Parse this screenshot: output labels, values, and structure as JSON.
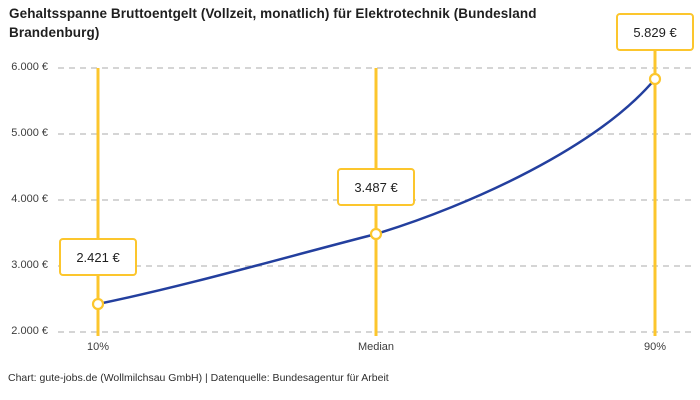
{
  "title": "Gehaltsspanne Bruttoentgelt (Vollzeit, monatlich) für Elektrotechnik (Bundesland Brandenburg)",
  "footer": "Chart: gute-jobs.de (Wollmilchsau GmbH) | Datenquelle: Bundesagentur für Arbeit",
  "colors": {
    "accent_yellow": "#FCC62D",
    "line_blue": "#233F9E",
    "grid": "#C7C7C7",
    "text_dark": "#1F1F1F",
    "text_axis": "#3D3D3D"
  },
  "chart_data": {
    "type": "line",
    "title": "Gehaltsspanne Bruttoentgelt (Vollzeit, monatlich) für Elektrotechnik (Bundesland Brandenburg)",
    "categories": [
      "10%",
      "Median",
      "90%"
    ],
    "values": [
      2421,
      3487,
      5829
    ],
    "value_labels": [
      "2.421 €",
      "3.487 €",
      "5.829 €"
    ],
    "series_name": "Bruttoentgelt",
    "xlabel": "",
    "ylabel": "",
    "ylim": [
      2000,
      6000
    ],
    "yticks": [
      2000,
      3000,
      4000,
      5000,
      6000
    ],
    "ytick_labels": [
      "2.000 €",
      "3.000 €",
      "4.000 €",
      "5.000 €",
      "6.000 €"
    ],
    "grid": "horizontal dashed",
    "legend": "none",
    "annotations": "each percentile marked with vertical yellow line, open circle marker and boxed value label",
    "source": "Chart: gute-jobs.de (Wollmilchsau GmbH) | Datenquelle: Bundesagentur für Arbeit"
  }
}
